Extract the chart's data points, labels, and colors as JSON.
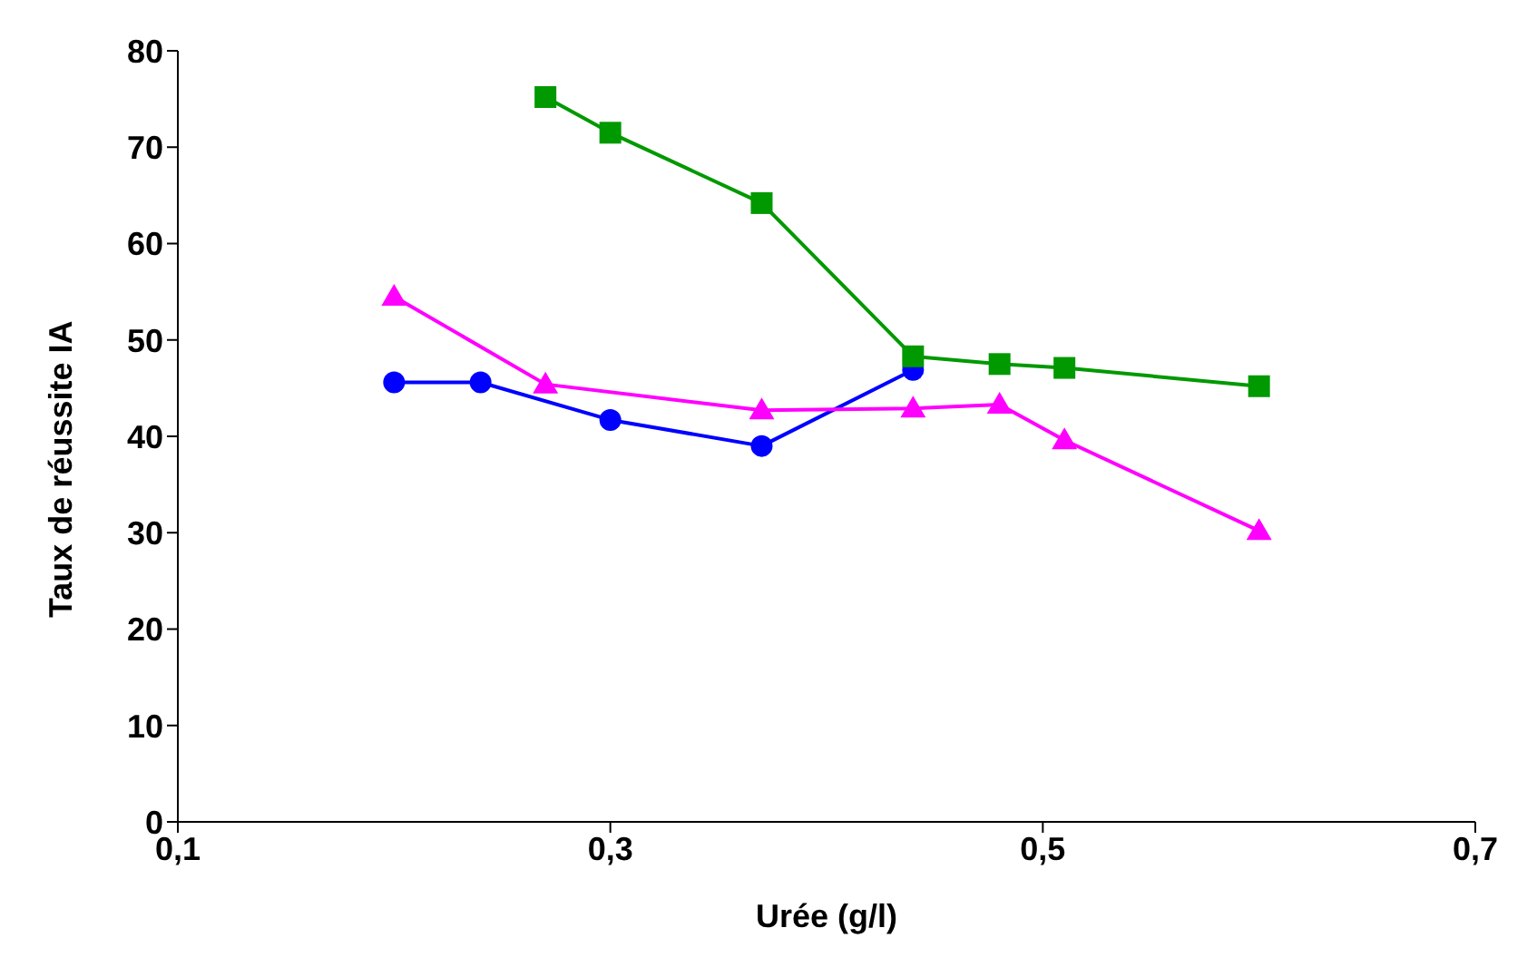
{
  "chart_data": {
    "type": "line",
    "xlabel": "Urée (g/l)",
    "ylabel": "Taux de réussite IA",
    "xlim": [
      0.1,
      0.7
    ],
    "xticks": [
      {
        "value": 0.1,
        "label": "0,1"
      },
      {
        "value": 0.3,
        "label": "0,3"
      },
      {
        "value": 0.5,
        "label": "0,5"
      },
      {
        "value": 0.7,
        "label": "0,7"
      }
    ],
    "ylim": [
      0,
      80
    ],
    "yticks": [
      0,
      10,
      20,
      30,
      40,
      50,
      60,
      70,
      80
    ],
    "grid": false,
    "legend": false,
    "series": [
      {
        "color": "#0000ff",
        "marker": "circle",
        "x": [
          0.2,
          0.24,
          0.3,
          0.37,
          0.44
        ],
        "values": [
          45.6,
          45.6,
          41.7,
          39,
          46.9
        ]
      },
      {
        "color": "#009900",
        "marker": "square",
        "x": [
          0.27,
          0.3,
          0.37,
          0.44,
          0.48,
          0.51,
          0.6
        ],
        "values": [
          75.2,
          71.5,
          64.2,
          48.3,
          47.5,
          47.1,
          45.2
        ]
      },
      {
        "color": "#ff00ff",
        "marker": "triangle",
        "x": [
          0.2,
          0.27,
          0.37,
          0.44,
          0.48,
          0.51,
          0.6
        ],
        "values": [
          54.5,
          45.4,
          42.7,
          42.9,
          43.3,
          39.6,
          30.2
        ]
      }
    ]
  }
}
